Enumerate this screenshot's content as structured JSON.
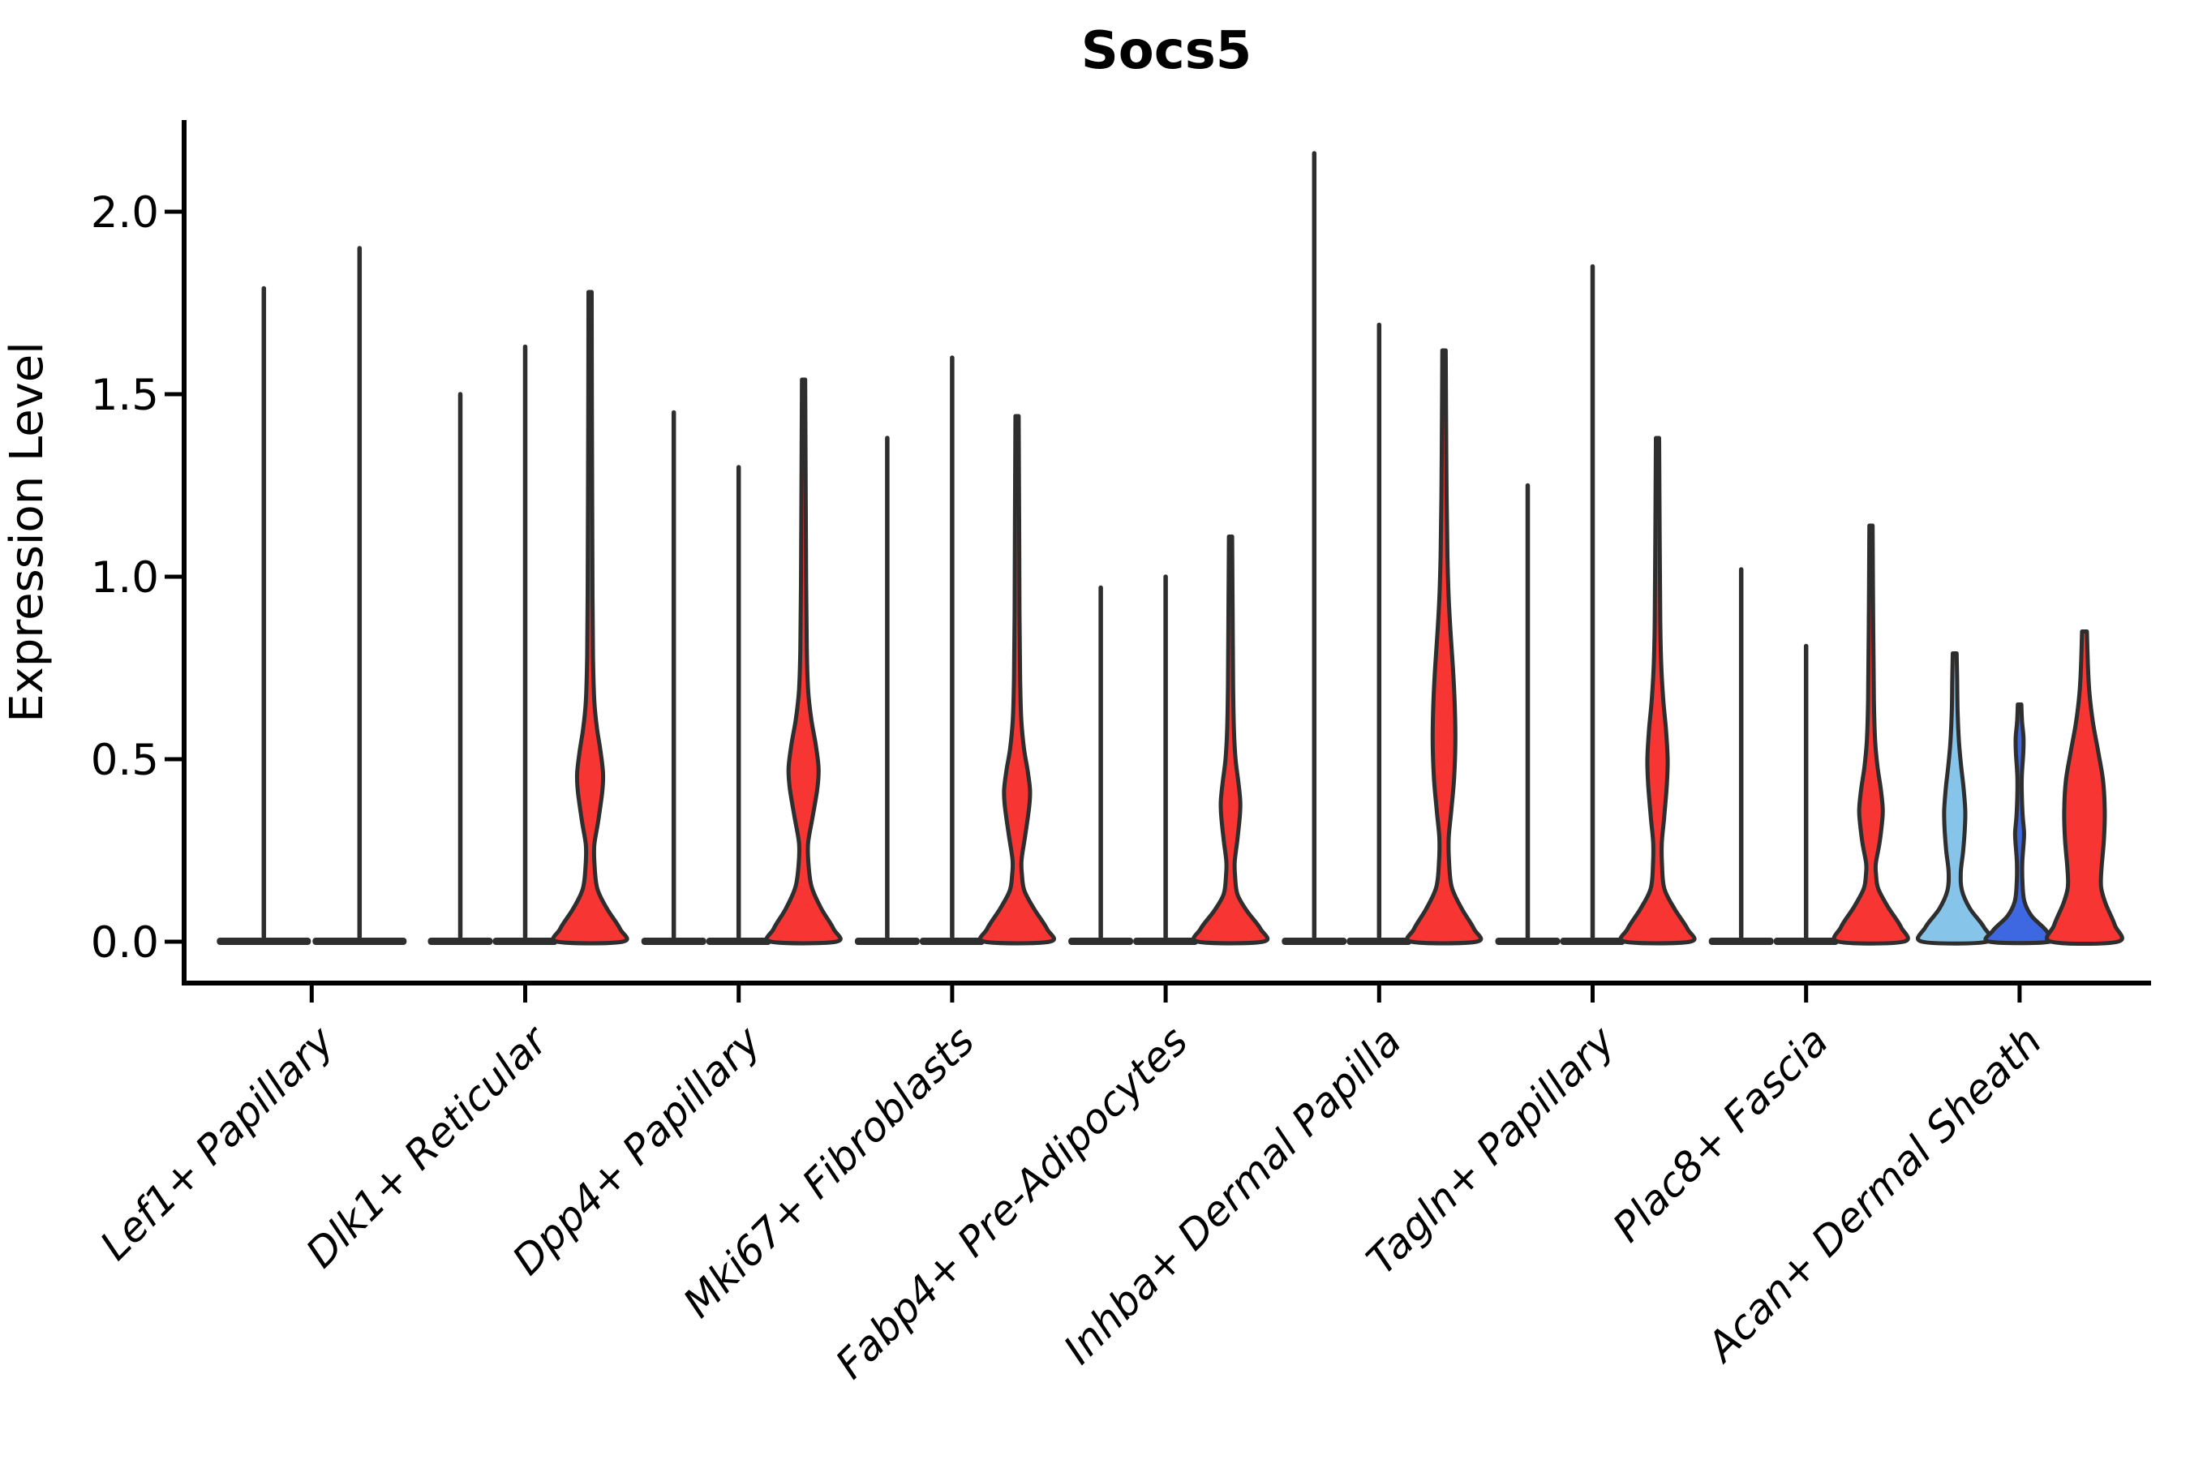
{
  "title": "Socs5",
  "axis": {
    "ylabel": "Expression Level",
    "ytick_labels": [
      "0.0",
      "0.5",
      "1.0",
      "1.5",
      "2.0"
    ]
  },
  "colors": {
    "red": "#f73533",
    "lightblue": "#87c4ea",
    "darkblue": "#3d68e1",
    "thin": "#2e2e2e",
    "outline": "#2e2e2e",
    "spine": "#000000"
  },
  "chart_data": {
    "type": "violin",
    "title": "Socs5",
    "xlabel": "",
    "ylabel": "Expression Level",
    "ylim": [
      -0.113,
      2.25
    ],
    "yticks": [
      0.0,
      0.5,
      1.0,
      1.5,
      2.0
    ],
    "grid": "off",
    "legend": "none",
    "x_label_rotation": 45,
    "categories": [
      "Lef1+ Papillary",
      "Dlk1+ Reticular",
      "Dpp4+ Papillary",
      "Mki67+ Fibroblasts",
      "Fabp4+ Pre-Adipocytes",
      "Inhba+ Dermal Papilla",
      "Tagln+ Papillary",
      "Plac8+ Fascia",
      "Acan+ Dermal Sheath"
    ],
    "groups": [
      {
        "category": "Lef1+ Papillary",
        "violins": [
          {
            "split": 1,
            "style": "spike",
            "color_key": "thin",
            "dx": -59,
            "base_halfwidth": 58,
            "max": 1.79
          },
          {
            "split": 2,
            "style": "spike",
            "color_key": "thin",
            "dx": 59,
            "base_halfwidth": 58,
            "max": 1.9
          }
        ]
      },
      {
        "category": "Dlk1+ Reticular",
        "violins": [
          {
            "split": 1,
            "style": "spike",
            "color_key": "thin",
            "dx": -80,
            "base_halfwidth": 40,
            "max": 1.5
          },
          {
            "split": 2,
            "style": "spike",
            "color_key": "thin",
            "dx": 0,
            "base_halfwidth": 40,
            "max": 1.63
          },
          {
            "split": 3,
            "style": "shaped",
            "color_key": "red",
            "dx": 80,
            "max": 1.78,
            "profile": [
              [
                0,
                40
              ],
              [
                0.035,
                37
              ],
              [
                0.09,
                21
              ],
              [
                0.145,
                9
              ],
              [
                0.21,
                5.5
              ],
              [
                0.265,
                5.2
              ],
              [
                0.33,
                10
              ],
              [
                0.41,
                15
              ],
              [
                0.46,
                16
              ],
              [
                0.52,
                13
              ],
              [
                0.585,
                8.5
              ],
              [
                0.66,
                5.2
              ],
              [
                0.78,
                3.6
              ],
              [
                0.95,
                3
              ],
              [
                1.2,
                2.6
              ],
              [
                1.5,
                2.2
              ],
              [
                1.78,
                2
              ]
            ]
          }
        ]
      },
      {
        "category": "Dpp4+ Papillary",
        "violins": [
          {
            "split": 1,
            "style": "spike",
            "color_key": "thin",
            "dx": -80,
            "base_halfwidth": 40,
            "max": 1.45
          },
          {
            "split": 2,
            "style": "spike",
            "color_key": "thin",
            "dx": 0,
            "base_halfwidth": 40,
            "max": 1.3
          },
          {
            "split": 3,
            "style": "shaped",
            "color_key": "red",
            "dx": 80,
            "max": 1.54,
            "profile": [
              [
                0,
                40
              ],
              [
                0.035,
                37
              ],
              [
                0.09,
                22
              ],
              [
                0.15,
                10
              ],
              [
                0.215,
                6
              ],
              [
                0.27,
                5.6
              ],
              [
                0.34,
                11
              ],
              [
                0.42,
                17
              ],
              [
                0.475,
                18.5
              ],
              [
                0.54,
                15
              ],
              [
                0.61,
                9.5
              ],
              [
                0.69,
                5.6
              ],
              [
                0.8,
                4
              ],
              [
                0.98,
                3.2
              ],
              [
                1.25,
                2.6
              ],
              [
                1.54,
                2
              ]
            ]
          }
        ]
      },
      {
        "category": "Mki67+ Fibroblasts",
        "violins": [
          {
            "split": 1,
            "style": "spike",
            "color_key": "thin",
            "dx": -80,
            "base_halfwidth": 40,
            "max": 1.38
          },
          {
            "split": 2,
            "style": "spike",
            "color_key": "thin",
            "dx": 0,
            "base_halfwidth": 40,
            "max": 1.6
          },
          {
            "split": 3,
            "style": "shaped",
            "color_key": "red",
            "dx": 80,
            "max": 1.44,
            "profile": [
              [
                0,
                40
              ],
              [
                0.035,
                37
              ],
              [
                0.09,
                21
              ],
              [
                0.14,
                9
              ],
              [
                0.185,
                6
              ],
              [
                0.225,
                5.6
              ],
              [
                0.29,
                10
              ],
              [
                0.37,
                15
              ],
              [
                0.415,
                16
              ],
              [
                0.47,
                13
              ],
              [
                0.53,
                8.5
              ],
              [
                0.61,
                5.2
              ],
              [
                0.72,
                3.8
              ],
              [
                0.9,
                3
              ],
              [
                1.15,
                2.6
              ],
              [
                1.44,
                2
              ]
            ]
          }
        ]
      },
      {
        "category": "Fabp4+ Pre-Adipocytes",
        "violins": [
          {
            "split": 1,
            "style": "spike",
            "color_key": "thin",
            "dx": -80,
            "base_halfwidth": 40,
            "max": 0.97
          },
          {
            "split": 2,
            "style": "spike",
            "color_key": "thin",
            "dx": 0,
            "base_halfwidth": 40,
            "max": 1.0
          },
          {
            "split": 3,
            "style": "shaped",
            "color_key": "red",
            "dx": 80,
            "max": 1.11,
            "profile": [
              [
                0,
                40
              ],
              [
                0.035,
                37
              ],
              [
                0.085,
                20
              ],
              [
                0.13,
                8.5
              ],
              [
                0.18,
                5.6
              ],
              [
                0.22,
                5.2
              ],
              [
                0.28,
                8.5
              ],
              [
                0.345,
                11.5
              ],
              [
                0.385,
                12
              ],
              [
                0.44,
                9.5
              ],
              [
                0.5,
                6.2
              ],
              [
                0.58,
                4.2
              ],
              [
                0.7,
                3.2
              ],
              [
                0.9,
                2.6
              ],
              [
                1.11,
                2
              ]
            ]
          }
        ]
      },
      {
        "category": "Inhba+ Dermal Papilla",
        "violins": [
          {
            "split": 1,
            "style": "spike",
            "color_key": "thin",
            "dx": -80,
            "base_halfwidth": 40,
            "max": 2.16
          },
          {
            "split": 2,
            "style": "spike",
            "color_key": "thin",
            "dx": 0,
            "base_halfwidth": 40,
            "max": 1.69
          },
          {
            "split": 3,
            "style": "shaped",
            "color_key": "red",
            "dx": 80,
            "max": 1.62,
            "profile": [
              [
                0,
                40
              ],
              [
                0.035,
                37
              ],
              [
                0.09,
                22
              ],
              [
                0.15,
                9.5
              ],
              [
                0.22,
                6.2
              ],
              [
                0.285,
                5.8
              ],
              [
                0.36,
                9
              ],
              [
                0.45,
                12.5
              ],
              [
                0.55,
                14
              ],
              [
                0.65,
                13.2
              ],
              [
                0.75,
                11
              ],
              [
                0.85,
                8
              ],
              [
                0.95,
                5.6
              ],
              [
                1.06,
                4.2
              ],
              [
                1.22,
                3.2
              ],
              [
                1.45,
                2.5
              ],
              [
                1.62,
                2.1
              ]
            ]
          }
        ]
      },
      {
        "category": "Tagln+ Papillary",
        "violins": [
          {
            "split": 1,
            "style": "spike",
            "color_key": "thin",
            "dx": -80,
            "base_halfwidth": 40,
            "max": 1.25
          },
          {
            "split": 2,
            "style": "spike",
            "color_key": "thin",
            "dx": 0,
            "base_halfwidth": 40,
            "max": 1.85
          },
          {
            "split": 3,
            "style": "shaped",
            "color_key": "red",
            "dx": 80,
            "max": 1.38,
            "profile": [
              [
                0,
                40
              ],
              [
                0.035,
                37
              ],
              [
                0.09,
                21
              ],
              [
                0.145,
                8.5
              ],
              [
                0.21,
                5.6
              ],
              [
                0.27,
                5.3
              ],
              [
                0.34,
                8.2
              ],
              [
                0.43,
                11.5
              ],
              [
                0.5,
                12.5
              ],
              [
                0.58,
                10.5
              ],
              [
                0.66,
                7.2
              ],
              [
                0.76,
                4.6
              ],
              [
                0.88,
                3.4
              ],
              [
                1.1,
                2.7
              ],
              [
                1.38,
                2
              ]
            ]
          }
        ]
      },
      {
        "category": "Plac8+ Fascia",
        "violins": [
          {
            "split": 1,
            "style": "spike",
            "color_key": "thin",
            "dx": -80,
            "base_halfwidth": 40,
            "max": 1.02
          },
          {
            "split": 2,
            "style": "spike",
            "color_key": "thin",
            "dx": 0,
            "base_halfwidth": 40,
            "max": 0.81
          },
          {
            "split": 3,
            "style": "shaped",
            "color_key": "red",
            "dx": 80,
            "max": 1.14,
            "profile": [
              [
                0,
                40
              ],
              [
                0.04,
                37
              ],
              [
                0.095,
                21
              ],
              [
                0.145,
                9
              ],
              [
                0.185,
                6.2
              ],
              [
                0.215,
                6
              ],
              [
                0.27,
                10.5
              ],
              [
                0.33,
                13.8
              ],
              [
                0.365,
                14.5
              ],
              [
                0.42,
                12
              ],
              [
                0.48,
                8
              ],
              [
                0.555,
                5
              ],
              [
                0.66,
                3.6
              ],
              [
                0.85,
                2.8
              ],
              [
                1.14,
                2
              ]
            ]
          }
        ]
      },
      {
        "category": "Acan+ Dermal Sheath",
        "violins": [
          {
            "split": 1,
            "style": "shaped",
            "color_key": "lightblue",
            "dx": -80,
            "max": 0.79,
            "profile": [
              [
                0,
                40
              ],
              [
                0.04,
                36
              ],
              [
                0.09,
                19
              ],
              [
                0.14,
                9
              ],
              [
                0.19,
                7.5
              ],
              [
                0.25,
                10.5
              ],
              [
                0.31,
                12.5
              ],
              [
                0.36,
                13
              ],
              [
                0.42,
                11
              ],
              [
                0.48,
                8
              ],
              [
                0.55,
                5.2
              ],
              [
                0.63,
                3.6
              ],
              [
                0.72,
                3
              ],
              [
                0.79,
                2.4
              ]
            ]
          },
          {
            "split": 2,
            "style": "shaped",
            "color_key": "darkblue",
            "dx": 0,
            "max": 0.65,
            "profile": [
              [
                0,
                37
              ],
              [
                0.03,
                33
              ],
              [
                0.07,
                15
              ],
              [
                0.11,
                6
              ],
              [
                0.16,
                3.6
              ],
              [
                0.215,
                3.3
              ],
              [
                0.27,
                5
              ],
              [
                0.3,
                5.5
              ],
              [
                0.345,
                3.8
              ],
              [
                0.4,
                2.8
              ],
              [
                0.455,
                2.8
              ],
              [
                0.52,
                4.6
              ],
              [
                0.56,
                4.8
              ],
              [
                0.605,
                3
              ],
              [
                0.65,
                2.2
              ]
            ]
          },
          {
            "split": 3,
            "style": "shaped",
            "color_key": "red",
            "dx": 80,
            "max": 0.85,
            "profile": [
              [
                0,
                41
              ],
              [
                0.045,
                37.5
              ],
              [
                0.105,
                26
              ],
              [
                0.15,
                20.5
              ],
              [
                0.2,
                21
              ],
              [
                0.28,
                24
              ],
              [
                0.36,
                25
              ],
              [
                0.44,
                23
              ],
              [
                0.52,
                17
              ],
              [
                0.6,
                10.5
              ],
              [
                0.68,
                6.2
              ],
              [
                0.76,
                4.2
              ],
              [
                0.85,
                3
              ]
            ]
          }
        ]
      }
    ]
  }
}
